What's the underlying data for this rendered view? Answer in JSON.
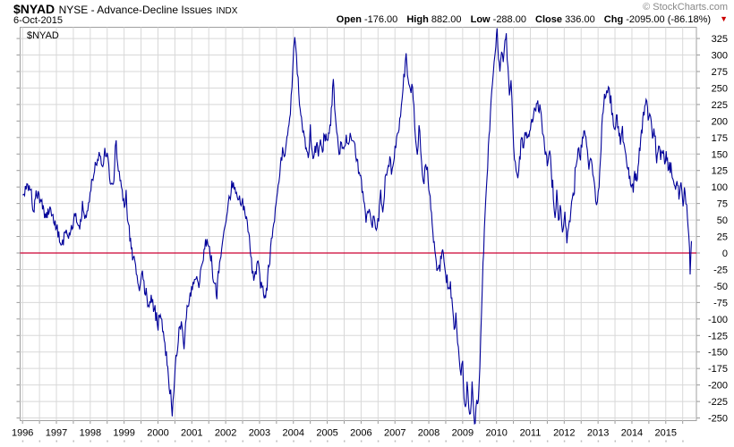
{
  "header": {
    "symbol": "$NYAD",
    "description": "NYSE - Advance-Decline Issues",
    "index_tag": "INDX",
    "date": "6-Oct-2015",
    "copyright": "© StockCharts.com",
    "quote": [
      {
        "label": "Open",
        "value": "-176.00"
      },
      {
        "label": "High",
        "value": "882.00"
      },
      {
        "label": "Low",
        "value": "-288.00"
      },
      {
        "label": "Close",
        "value": "336.00"
      },
      {
        "label": "Chg",
        "value": "-2095.00 (-86.18%)"
      }
    ],
    "chg_arrow": "▼",
    "chg_direction": "down"
  },
  "chart": {
    "watermark_label": "$NYAD",
    "colors": {
      "line": "#000099",
      "zero_line": "#cc0033",
      "grid": "#d8d8d8",
      "border": "#a0a0a0",
      "tick": "#999999",
      "minor_dot": "#bbbbbb",
      "axis_text": "#000000",
      "copyright_text": "#888888",
      "chg_arrow": "#cc0000"
    }
  },
  "chart_data": {
    "type": "line",
    "title": "$NYAD NYSE - Advance-Decline Issues INDX",
    "series_name": "$NYAD",
    "xlabel": "",
    "ylabel": "",
    "x_unit": "decimal_year",
    "xlim": [
      1996.0,
      2015.9
    ],
    "ylim": [
      -250,
      325
    ],
    "grid": true,
    "zero_line": 0,
    "y_ticks": [
      325,
      300,
      275,
      250,
      225,
      200,
      175,
      150,
      125,
      100,
      75,
      50,
      25,
      0,
      -25,
      -50,
      -75,
      -100,
      -125,
      -150,
      -175,
      -200,
      -225,
      -250
    ],
    "x_ticks": [
      1996,
      1997,
      1998,
      1999,
      2000,
      2001,
      2002,
      2003,
      2004,
      2005,
      2006,
      2007,
      2008,
      2009,
      2010,
      2011,
      2012,
      2013,
      2014,
      2015
    ],
    "points": [
      [
        1996.0,
        88
      ],
      [
        1996.06,
        90
      ],
      [
        1996.15,
        100
      ],
      [
        1996.24,
        96
      ],
      [
        1996.32,
        67
      ],
      [
        1996.4,
        80
      ],
      [
        1996.46,
        92
      ],
      [
        1996.53,
        78
      ],
      [
        1996.59,
        72
      ],
      [
        1996.67,
        54
      ],
      [
        1996.75,
        60
      ],
      [
        1996.81,
        67
      ],
      [
        1996.88,
        58
      ],
      [
        1996.94,
        50
      ],
      [
        1997.0,
        40
      ],
      [
        1997.07,
        27
      ],
      [
        1997.16,
        7
      ],
      [
        1997.23,
        25
      ],
      [
        1997.29,
        36
      ],
      [
        1997.36,
        28
      ],
      [
        1997.42,
        34
      ],
      [
        1997.49,
        45
      ],
      [
        1997.55,
        56
      ],
      [
        1997.62,
        50
      ],
      [
        1997.69,
        47
      ],
      [
        1997.77,
        65
      ],
      [
        1997.86,
        49
      ],
      [
        1997.95,
        76
      ],
      [
        1998.02,
        95
      ],
      [
        1998.08,
        117
      ],
      [
        1998.17,
        135
      ],
      [
        1998.26,
        148
      ],
      [
        1998.35,
        130
      ],
      [
        1998.43,
        153
      ],
      [
        1998.52,
        144
      ],
      [
        1998.57,
        120
      ],
      [
        1998.61,
        99
      ],
      [
        1998.66,
        112
      ],
      [
        1998.7,
        108
      ],
      [
        1998.74,
        168
      ],
      [
        1998.79,
        148
      ],
      [
        1998.83,
        130
      ],
      [
        1998.88,
        112
      ],
      [
        1998.92,
        99
      ],
      [
        1999.01,
        72
      ],
      [
        1999.06,
        88
      ],
      [
        1999.1,
        45
      ],
      [
        1999.15,
        30
      ],
      [
        1999.19,
        18
      ],
      [
        1999.27,
        -14
      ],
      [
        1999.32,
        -5
      ],
      [
        1999.36,
        -27
      ],
      [
        1999.45,
        -50
      ],
      [
        1999.54,
        -32
      ],
      [
        1999.63,
        -63
      ],
      [
        1999.72,
        -77
      ],
      [
        1999.8,
        -68
      ],
      [
        1999.89,
        -86
      ],
      [
        1999.98,
        -108
      ],
      [
        2000.07,
        -90
      ],
      [
        2000.16,
        -126
      ],
      [
        2000.25,
        -153
      ],
      [
        2000.33,
        -198
      ],
      [
        2000.42,
        -240
      ],
      [
        2000.47,
        -210
      ],
      [
        2000.51,
        -176
      ],
      [
        2000.6,
        -131
      ],
      [
        2000.69,
        -108
      ],
      [
        2000.77,
        -135
      ],
      [
        2000.86,
        -86
      ],
      [
        2000.95,
        -63
      ],
      [
        2001.08,
        -36
      ],
      [
        2001.21,
        -45
      ],
      [
        2001.3,
        -20
      ],
      [
        2001.38,
        5
      ],
      [
        2001.45,
        22
      ],
      [
        2001.52,
        8
      ],
      [
        2001.6,
        -25
      ],
      [
        2001.68,
        -50
      ],
      [
        2001.74,
        -58
      ],
      [
        2001.8,
        -25
      ],
      [
        2001.88,
        10
      ],
      [
        2001.95,
        35
      ],
      [
        2002.03,
        60
      ],
      [
        2002.1,
        80
      ],
      [
        2002.18,
        95
      ],
      [
        2002.25,
        103
      ],
      [
        2002.32,
        90
      ],
      [
        2002.41,
        85
      ],
      [
        2002.5,
        72
      ],
      [
        2002.57,
        60
      ],
      [
        2002.64,
        48
      ],
      [
        2002.7,
        20
      ],
      [
        2002.76,
        -10
      ],
      [
        2002.83,
        -47
      ],
      [
        2002.9,
        -25
      ],
      [
        2002.96,
        -9
      ],
      [
        2003.03,
        -40
      ],
      [
        2003.1,
        -55
      ],
      [
        2003.16,
        -68
      ],
      [
        2003.22,
        -48
      ],
      [
        2003.28,
        -20
      ],
      [
        2003.35,
        15
      ],
      [
        2003.42,
        45
      ],
      [
        2003.49,
        75
      ],
      [
        2003.55,
        105
      ],
      [
        2003.62,
        130
      ],
      [
        2003.68,
        148
      ],
      [
        2003.73,
        140
      ],
      [
        2003.79,
        162
      ],
      [
        2003.85,
        185
      ],
      [
        2003.91,
        210
      ],
      [
        2003.96,
        255
      ],
      [
        2004.01,
        305
      ],
      [
        2004.04,
        332
      ],
      [
        2004.09,
        295
      ],
      [
        2004.14,
        255
      ],
      [
        2004.2,
        215
      ],
      [
        2004.26,
        190
      ],
      [
        2004.32,
        175
      ],
      [
        2004.38,
        160
      ],
      [
        2004.44,
        150
      ],
      [
        2004.5,
        180
      ],
      [
        2004.56,
        158
      ],
      [
        2004.62,
        148
      ],
      [
        2004.68,
        168
      ],
      [
        2004.74,
        152
      ],
      [
        2004.8,
        170
      ],
      [
        2004.86,
        158
      ],
      [
        2004.92,
        174
      ],
      [
        2004.98,
        162
      ],
      [
        2005.04,
        180
      ],
      [
        2005.1,
        195
      ],
      [
        2005.14,
        225
      ],
      [
        2005.18,
        268
      ],
      [
        2005.22,
        215
      ],
      [
        2005.28,
        180
      ],
      [
        2005.35,
        152
      ],
      [
        2005.42,
        168
      ],
      [
        2005.49,
        158
      ],
      [
        2005.56,
        178
      ],
      [
        2005.63,
        165
      ],
      [
        2005.7,
        182
      ],
      [
        2005.77,
        168
      ],
      [
        2005.84,
        155
      ],
      [
        2005.9,
        140
      ],
      [
        2005.97,
        120
      ],
      [
        2006.03,
        95
      ],
      [
        2006.1,
        70
      ],
      [
        2006.17,
        52
      ],
      [
        2006.24,
        70
      ],
      [
        2006.31,
        40
      ],
      [
        2006.38,
        55
      ],
      [
        2006.45,
        32
      ],
      [
        2006.52,
        55
      ],
      [
        2006.58,
        90
      ],
      [
        2006.64,
        68
      ],
      [
        2006.71,
        105
      ],
      [
        2006.78,
        128
      ],
      [
        2006.85,
        142
      ],
      [
        2006.92,
        128
      ],
      [
        2006.98,
        148
      ],
      [
        2007.05,
        168
      ],
      [
        2007.12,
        192
      ],
      [
        2007.19,
        225
      ],
      [
        2007.26,
        262
      ],
      [
        2007.33,
        294
      ],
      [
        2007.39,
        268
      ],
      [
        2007.45,
        242
      ],
      [
        2007.5,
        258
      ],
      [
        2007.56,
        225
      ],
      [
        2007.61,
        170
      ],
      [
        2007.66,
        150
      ],
      [
        2007.71,
        192
      ],
      [
        2007.76,
        165
      ],
      [
        2007.81,
        120
      ],
      [
        2007.86,
        108
      ],
      [
        2007.91,
        138
      ],
      [
        2007.96,
        125
      ],
      [
        2008.02,
        90
      ],
      [
        2008.08,
        55
      ],
      [
        2008.14,
        20
      ],
      [
        2008.2,
        -10
      ],
      [
        2008.26,
        -28
      ],
      [
        2008.33,
        -15
      ],
      [
        2008.39,
        5
      ],
      [
        2008.45,
        -10
      ],
      [
        2008.52,
        -38
      ],
      [
        2008.58,
        -60
      ],
      [
        2008.64,
        -45
      ],
      [
        2008.7,
        -85
      ],
      [
        2008.75,
        -110
      ],
      [
        2008.8,
        -95
      ],
      [
        2008.85,
        -130
      ],
      [
        2008.9,
        -155
      ],
      [
        2008.95,
        -185
      ],
      [
        2009.0,
        -160
      ],
      [
        2009.04,
        -215
      ],
      [
        2009.08,
        -235
      ],
      [
        2009.13,
        -195
      ],
      [
        2009.18,
        -230
      ],
      [
        2009.23,
        -243
      ],
      [
        2009.28,
        -200
      ],
      [
        2009.33,
        -240
      ],
      [
        2009.37,
        -265
      ],
      [
        2009.42,
        -210
      ],
      [
        2009.46,
        -238
      ],
      [
        2009.51,
        -170
      ],
      [
        2009.56,
        -90
      ],
      [
        2009.6,
        -20
      ],
      [
        2009.64,
        30
      ],
      [
        2009.68,
        75
      ],
      [
        2009.72,
        115
      ],
      [
        2009.76,
        155
      ],
      [
        2009.8,
        195
      ],
      [
        2009.84,
        230
      ],
      [
        2009.88,
        262
      ],
      [
        2009.93,
        295
      ],
      [
        2009.98,
        318
      ],
      [
        2010.02,
        335
      ],
      [
        2010.06,
        295
      ],
      [
        2010.1,
        272
      ],
      [
        2010.15,
        305
      ],
      [
        2010.2,
        288
      ],
      [
        2010.25,
        318
      ],
      [
        2010.29,
        326
      ],
      [
        2010.34,
        275
      ],
      [
        2010.38,
        245
      ],
      [
        2010.43,
        262
      ],
      [
        2010.48,
        195
      ],
      [
        2010.53,
        140
      ],
      [
        2010.58,
        125
      ],
      [
        2010.63,
        112
      ],
      [
        2010.68,
        150
      ],
      [
        2010.74,
        172
      ],
      [
        2010.8,
        160
      ],
      [
        2010.86,
        185
      ],
      [
        2010.92,
        172
      ],
      [
        2010.98,
        190
      ],
      [
        2011.04,
        198
      ],
      [
        2011.1,
        210
      ],
      [
        2011.16,
        222
      ],
      [
        2011.22,
        218
      ],
      [
        2011.28,
        228
      ],
      [
        2011.34,
        195
      ],
      [
        2011.4,
        170
      ],
      [
        2011.46,
        148
      ],
      [
        2011.52,
        132
      ],
      [
        2011.57,
        158
      ],
      [
        2011.62,
        120
      ],
      [
        2011.68,
        85
      ],
      [
        2011.73,
        55
      ],
      [
        2011.78,
        92
      ],
      [
        2011.83,
        45
      ],
      [
        2011.88,
        65
      ],
      [
        2011.95,
        28
      ],
      [
        2012.02,
        58
      ],
      [
        2012.08,
        20
      ],
      [
        2012.15,
        42
      ],
      [
        2012.22,
        75
      ],
      [
        2012.3,
        105
      ],
      [
        2012.37,
        135
      ],
      [
        2012.43,
        160
      ],
      [
        2012.48,
        145
      ],
      [
        2012.54,
        172
      ],
      [
        2012.6,
        188
      ],
      [
        2012.66,
        165
      ],
      [
        2012.73,
        132
      ],
      [
        2012.8,
        146
      ],
      [
        2012.87,
        112
      ],
      [
        2012.93,
        86
      ],
      [
        2012.98,
        70
      ],
      [
        2013.03,
        105
      ],
      [
        2013.07,
        145
      ],
      [
        2013.11,
        185
      ],
      [
        2013.15,
        220
      ],
      [
        2013.19,
        242
      ],
      [
        2013.23,
        230
      ],
      [
        2013.28,
        248
      ],
      [
        2013.33,
        252
      ],
      [
        2013.38,
        228
      ],
      [
        2013.43,
        205
      ],
      [
        2013.48,
        182
      ],
      [
        2013.54,
        205
      ],
      [
        2013.6,
        190
      ],
      [
        2013.66,
        168
      ],
      [
        2013.72,
        182
      ],
      [
        2013.78,
        160
      ],
      [
        2013.84,
        142
      ],
      [
        2013.9,
        125
      ],
      [
        2013.96,
        105
      ],
      [
        2014.02,
        98
      ],
      [
        2014.08,
        122
      ],
      [
        2014.14,
        108
      ],
      [
        2014.2,
        142
      ],
      [
        2014.26,
        172
      ],
      [
        2014.32,
        198
      ],
      [
        2014.38,
        222
      ],
      [
        2014.44,
        228
      ],
      [
        2014.5,
        198
      ],
      [
        2014.55,
        210
      ],
      [
        2014.61,
        172
      ],
      [
        2014.67,
        185
      ],
      [
        2014.73,
        148
      ],
      [
        2014.79,
        165
      ],
      [
        2014.85,
        142
      ],
      [
        2014.91,
        158
      ],
      [
        2014.97,
        132
      ],
      [
        2015.03,
        148
      ],
      [
        2015.09,
        125
      ],
      [
        2015.15,
        140
      ],
      [
        2015.21,
        108
      ],
      [
        2015.27,
        95
      ],
      [
        2015.33,
        112
      ],
      [
        2015.39,
        88
      ],
      [
        2015.45,
        102
      ],
      [
        2015.51,
        78
      ],
      [
        2015.57,
        88
      ],
      [
        2015.62,
        70
      ],
      [
        2015.66,
        40
      ],
      [
        2015.7,
        5
      ],
      [
        2015.72,
        -25
      ],
      [
        2015.74,
        -8
      ],
      [
        2015.76,
        18
      ]
    ]
  }
}
